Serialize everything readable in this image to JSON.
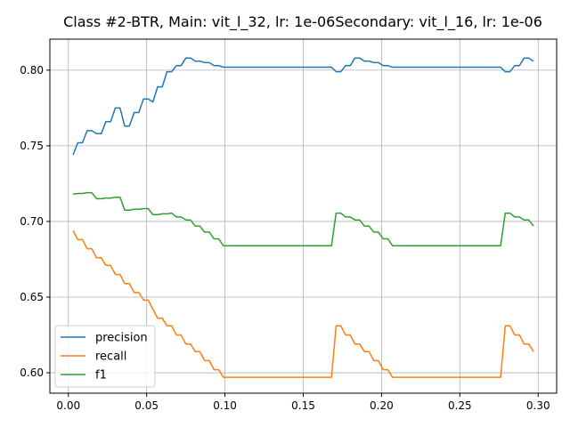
{
  "chart_data": {
    "type": "line",
    "title": "Class #2-BTR, Main: vit_l_32, lr: 1e-06Secondary: vit_l_16, lr: 1e-06",
    "xlabel": "",
    "ylabel": "",
    "xlim": [
      -0.0118,
      0.3118
    ],
    "ylim": [
      0.5865,
      0.8205
    ],
    "x_ticks": [
      0.0,
      0.05,
      0.1,
      0.15,
      0.2,
      0.25,
      0.3
    ],
    "x_tick_labels": [
      "0.00",
      "0.05",
      "0.10",
      "0.15",
      "0.20",
      "0.25",
      "0.30"
    ],
    "y_ticks": [
      0.6,
      0.65,
      0.7,
      0.75,
      0.8
    ],
    "y_tick_labels": [
      "0.60",
      "0.65",
      "0.70",
      "0.75",
      "0.80"
    ],
    "grid": true,
    "legend_position": "lower-left",
    "series": [
      {
        "name": "precision",
        "color": "#1f77b4",
        "x": [
          0.003,
          0.006,
          0.009,
          0.012,
          0.015,
          0.018,
          0.021,
          0.024,
          0.027,
          0.03,
          0.033,
          0.036,
          0.039,
          0.042,
          0.045,
          0.048,
          0.051,
          0.054,
          0.057,
          0.06,
          0.063,
          0.066,
          0.069,
          0.072,
          0.075,
          0.078,
          0.081,
          0.084,
          0.087,
          0.09,
          0.093,
          0.096,
          0.099,
          0.102,
          0.168,
          0.171,
          0.174,
          0.177,
          0.18,
          0.183,
          0.186,
          0.189,
          0.192,
          0.195,
          0.198,
          0.201,
          0.204,
          0.207,
          0.276,
          0.279,
          0.282,
          0.285,
          0.288,
          0.291,
          0.294,
          0.297
        ],
        "y": [
          0.744,
          0.752,
          0.752,
          0.76,
          0.76,
          0.758,
          0.758,
          0.766,
          0.766,
          0.775,
          0.775,
          0.763,
          0.763,
          0.772,
          0.772,
          0.781,
          0.781,
          0.779,
          0.789,
          0.789,
          0.799,
          0.799,
          0.803,
          0.803,
          0.808,
          0.808,
          0.806,
          0.806,
          0.805,
          0.805,
          0.803,
          0.803,
          0.802,
          0.802,
          0.802,
          0.799,
          0.799,
          0.803,
          0.803,
          0.808,
          0.808,
          0.806,
          0.806,
          0.805,
          0.805,
          0.803,
          0.803,
          0.802,
          0.802,
          0.799,
          0.799,
          0.803,
          0.803,
          0.808,
          0.808,
          0.806
        ]
      },
      {
        "name": "recall",
        "color": "#ff7f0e",
        "x": [
          0.003,
          0.006,
          0.009,
          0.012,
          0.015,
          0.018,
          0.021,
          0.024,
          0.027,
          0.03,
          0.033,
          0.036,
          0.039,
          0.042,
          0.045,
          0.048,
          0.051,
          0.054,
          0.057,
          0.06,
          0.063,
          0.066,
          0.069,
          0.072,
          0.075,
          0.078,
          0.081,
          0.084,
          0.087,
          0.09,
          0.093,
          0.096,
          0.099,
          0.102,
          0.168,
          0.171,
          0.174,
          0.177,
          0.18,
          0.183,
          0.186,
          0.189,
          0.192,
          0.195,
          0.198,
          0.201,
          0.204,
          0.207,
          0.276,
          0.279,
          0.282,
          0.285,
          0.288,
          0.291,
          0.294,
          0.297
        ],
        "y": [
          0.694,
          0.688,
          0.688,
          0.682,
          0.682,
          0.676,
          0.676,
          0.671,
          0.671,
          0.665,
          0.665,
          0.659,
          0.659,
          0.653,
          0.653,
          0.648,
          0.648,
          0.642,
          0.636,
          0.636,
          0.631,
          0.631,
          0.625,
          0.625,
          0.619,
          0.619,
          0.614,
          0.614,
          0.608,
          0.608,
          0.602,
          0.602,
          0.597,
          0.597,
          0.597,
          0.631,
          0.631,
          0.625,
          0.625,
          0.619,
          0.619,
          0.614,
          0.614,
          0.608,
          0.608,
          0.602,
          0.602,
          0.597,
          0.597,
          0.631,
          0.631,
          0.625,
          0.625,
          0.619,
          0.619,
          0.614
        ]
      },
      {
        "name": "f1",
        "color": "#2ca02c",
        "x": [
          0.003,
          0.006,
          0.009,
          0.012,
          0.015,
          0.018,
          0.021,
          0.024,
          0.027,
          0.03,
          0.033,
          0.036,
          0.039,
          0.042,
          0.045,
          0.048,
          0.051,
          0.054,
          0.057,
          0.06,
          0.063,
          0.066,
          0.069,
          0.072,
          0.075,
          0.078,
          0.081,
          0.084,
          0.087,
          0.09,
          0.093,
          0.096,
          0.099,
          0.102,
          0.168,
          0.171,
          0.174,
          0.177,
          0.18,
          0.183,
          0.186,
          0.189,
          0.192,
          0.195,
          0.198,
          0.201,
          0.204,
          0.207,
          0.276,
          0.279,
          0.282,
          0.285,
          0.288,
          0.291,
          0.294,
          0.297
        ],
        "y": [
          0.718,
          0.7185,
          0.7185,
          0.719,
          0.719,
          0.715,
          0.715,
          0.7155,
          0.7155,
          0.716,
          0.716,
          0.7075,
          0.7075,
          0.708,
          0.708,
          0.7085,
          0.7085,
          0.7045,
          0.7045,
          0.705,
          0.705,
          0.7055,
          0.703,
          0.703,
          0.701,
          0.701,
          0.697,
          0.697,
          0.693,
          0.693,
          0.6885,
          0.6885,
          0.684,
          0.684,
          0.684,
          0.7055,
          0.7055,
          0.703,
          0.703,
          0.701,
          0.701,
          0.697,
          0.697,
          0.693,
          0.693,
          0.6885,
          0.6885,
          0.684,
          0.684,
          0.7055,
          0.7055,
          0.703,
          0.703,
          0.701,
          0.701,
          0.697
        ]
      }
    ]
  }
}
